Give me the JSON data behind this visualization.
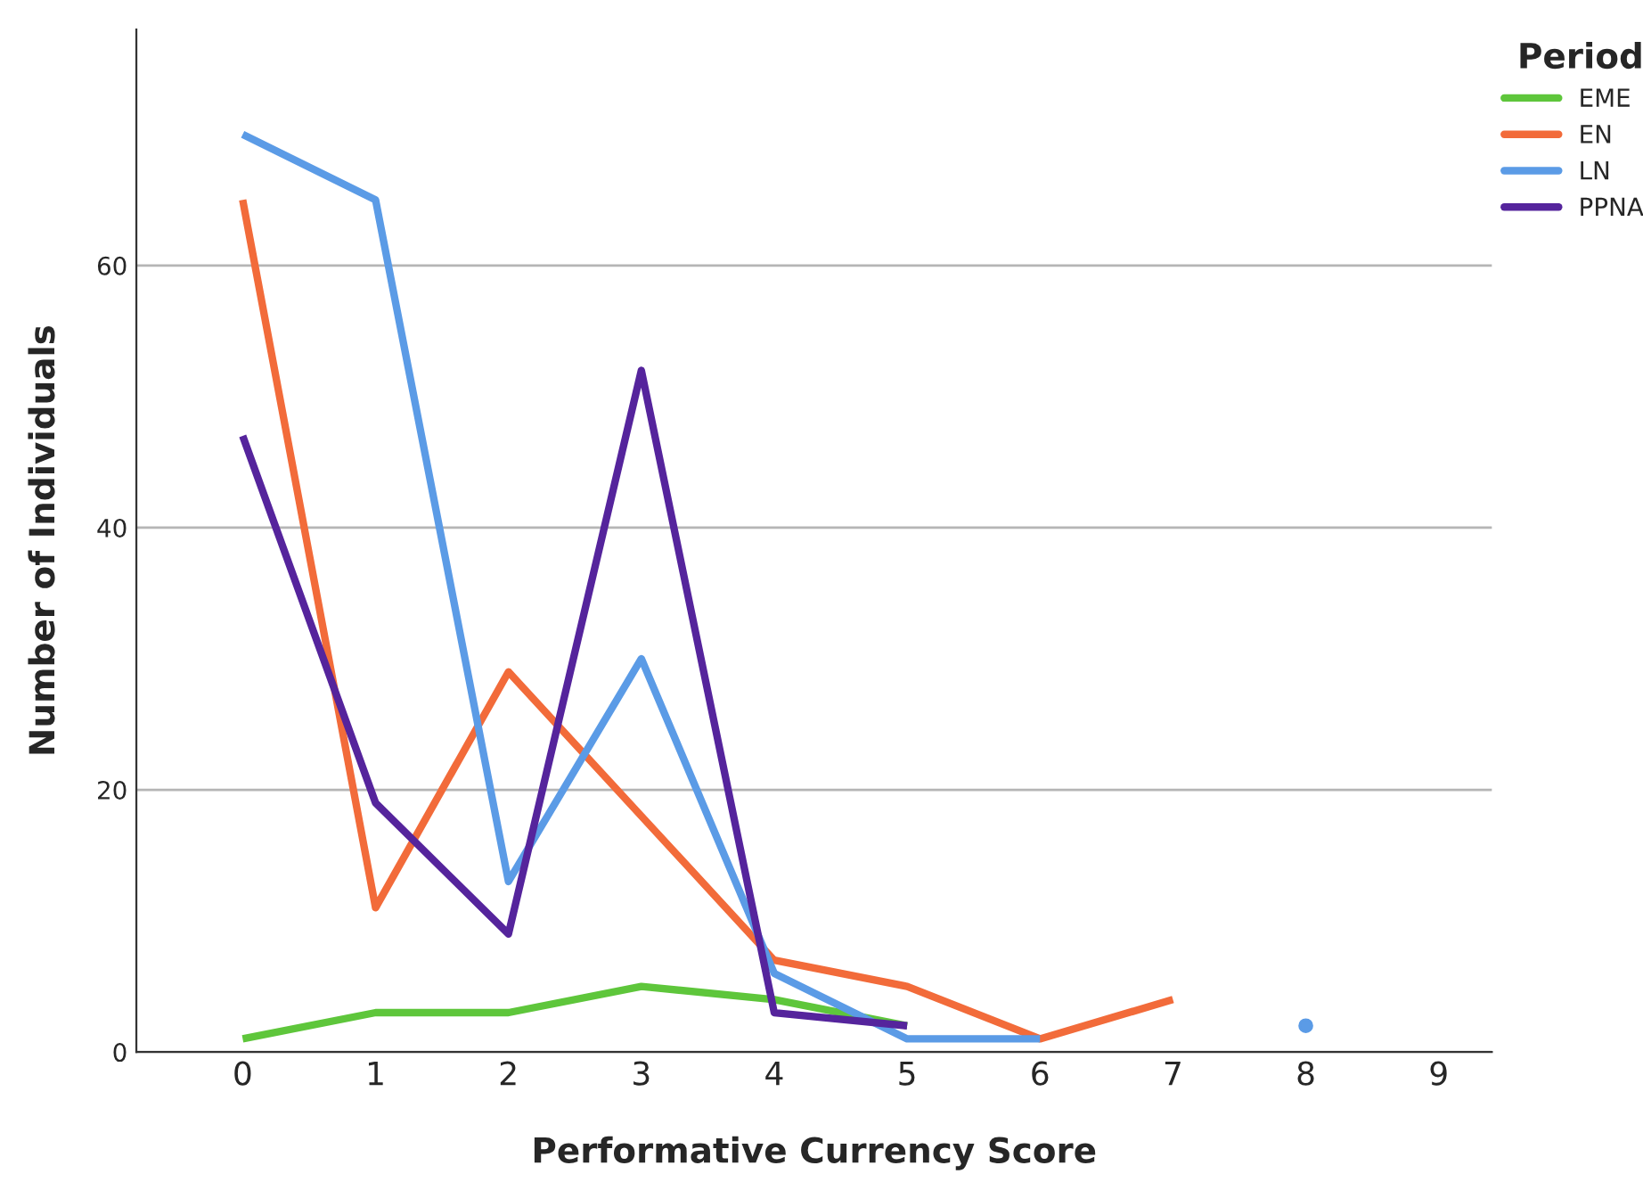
{
  "chart_data": {
    "type": "line",
    "xlabel": "Performative Currency Score",
    "ylabel": "Number of Individuals",
    "legend_title": "Period",
    "categories": [
      "0",
      "1",
      "2",
      "3",
      "4",
      "5",
      "6",
      "7",
      "8",
      "9"
    ],
    "series": [
      {
        "name": "EME",
        "color": "#5ec63b",
        "values": [
          1,
          3,
          3,
          5,
          4,
          2,
          null,
          null,
          null,
          null
        ]
      },
      {
        "name": "EN",
        "color": "#f26b3a",
        "values": [
          65,
          11,
          29,
          18,
          7,
          5,
          1,
          4,
          null,
          null
        ]
      },
      {
        "name": "LN",
        "color": "#5b9be6",
        "values": [
          70,
          65,
          13,
          30,
          6,
          1,
          1,
          null,
          2,
          null
        ]
      },
      {
        "name": "PPNA",
        "color": "#55249c",
        "values": [
          47,
          19,
          9,
          52,
          3,
          2,
          null,
          null,
          null,
          null
        ]
      }
    ],
    "ylim": [
      0,
      78
    ],
    "yticks": [
      0,
      20,
      40,
      60
    ],
    "grid": "y",
    "legend": "top right",
    "line_style": "solid",
    "marker": "none"
  }
}
